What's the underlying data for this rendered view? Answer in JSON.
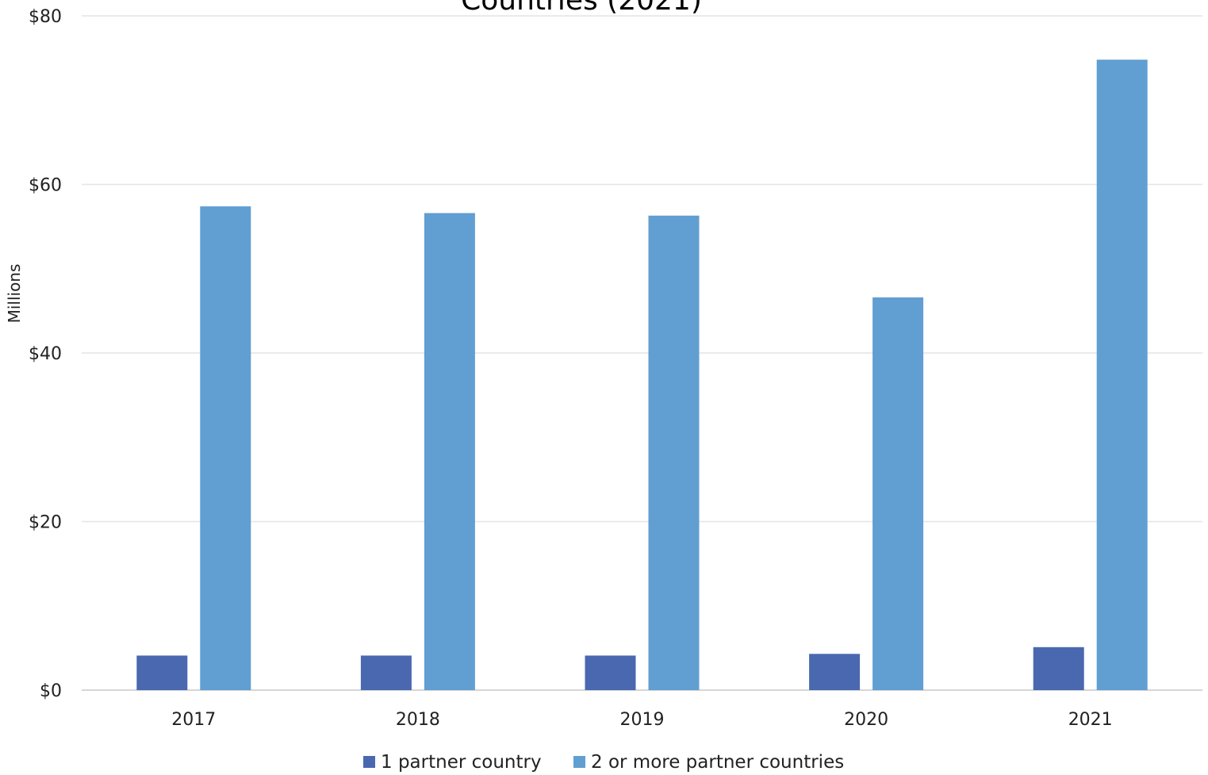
{
  "chart_data": {
    "type": "bar",
    "title": "Countries (2021)",
    "ylabel": "Millions",
    "xlabel": "",
    "categories": [
      "2017",
      "2018",
      "2019",
      "2020",
      "2021"
    ],
    "series": [
      {
        "name": "1 partner country",
        "color": "#4a68b0",
        "values": [
          4.1,
          4.1,
          4.1,
          4.3,
          5.1
        ]
      },
      {
        "name": "2 or more partner countries",
        "color": "#619ed2",
        "values": [
          57.4,
          56.6,
          56.3,
          46.6,
          74.8
        ]
      }
    ],
    "ylim": [
      0,
      80
    ],
    "yticks": [
      0,
      20,
      40,
      60,
      80
    ],
    "ytick_labels": [
      "$0",
      "$20",
      "$40",
      "$60",
      "$80"
    ],
    "grid": true,
    "legend_position": "bottom-center"
  }
}
